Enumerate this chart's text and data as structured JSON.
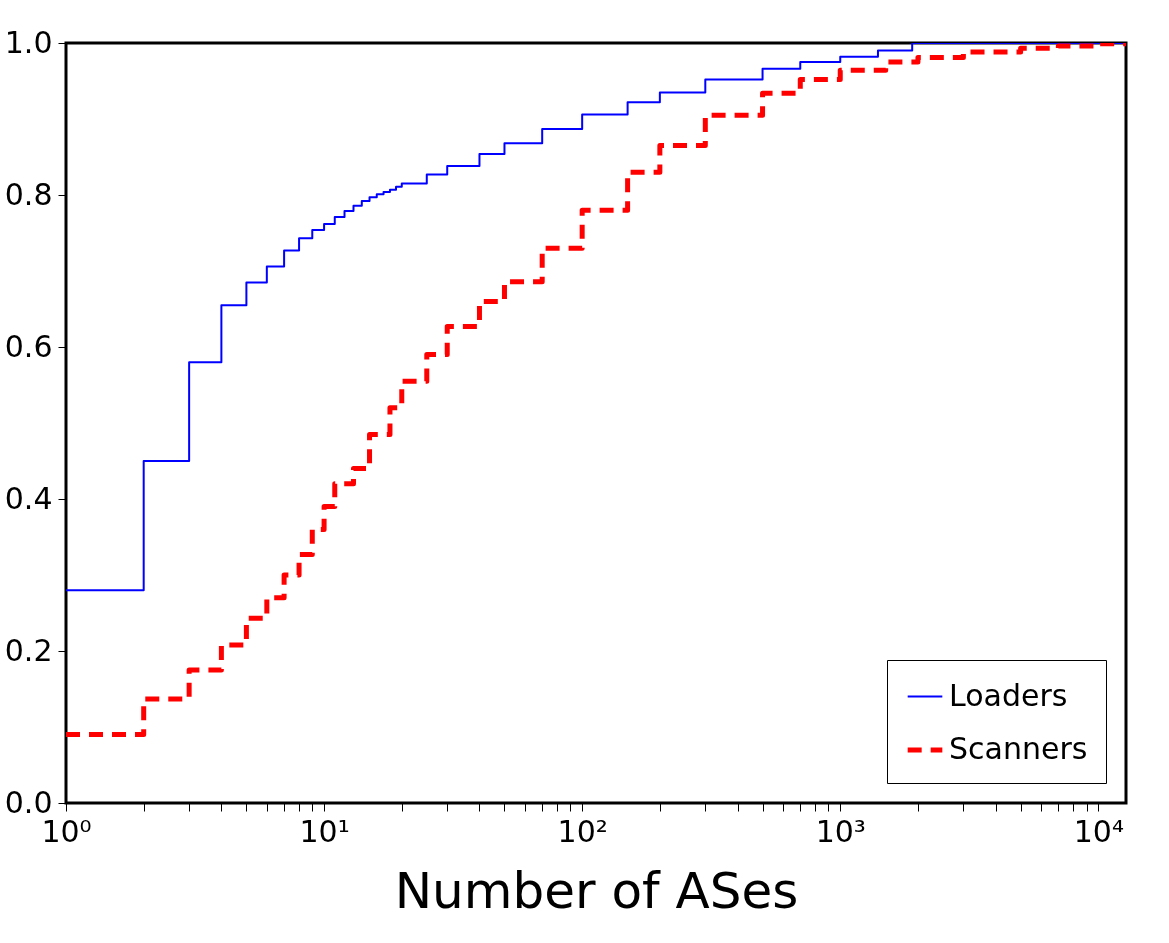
{
  "chart_data": {
    "type": "step",
    "xlabel": "Number of ASes",
    "log": "x",
    "grid": false,
    "legend": "bottom right",
    "xlim": [
      1,
      12800
    ],
    "ylim": [
      0,
      1
    ],
    "xticks": [
      {
        "value": 1,
        "label": "10⁰"
      },
      {
        "value": 2,
        "label": null
      },
      {
        "value": 3,
        "label": null
      },
      {
        "value": 4,
        "label": null
      },
      {
        "value": 5,
        "label": null
      },
      {
        "value": 6,
        "label": null
      },
      {
        "value": 7,
        "label": null
      },
      {
        "value": 8,
        "label": null
      },
      {
        "value": 9,
        "label": null
      },
      {
        "value": 10,
        "label": "10¹"
      },
      {
        "value": 20,
        "label": null
      },
      {
        "value": 30,
        "label": null
      },
      {
        "value": 40,
        "label": null
      },
      {
        "value": 50,
        "label": null
      },
      {
        "value": 60,
        "label": null
      },
      {
        "value": 70,
        "label": null
      },
      {
        "value": 80,
        "label": null
      },
      {
        "value": 90,
        "label": null
      },
      {
        "value": 100,
        "label": "10²"
      },
      {
        "value": 200,
        "label": null
      },
      {
        "value": 300,
        "label": null
      },
      {
        "value": 400,
        "label": null
      },
      {
        "value": 500,
        "label": null
      },
      {
        "value": 600,
        "label": null
      },
      {
        "value": 700,
        "label": null
      },
      {
        "value": 800,
        "label": null
      },
      {
        "value": 900,
        "label": null
      },
      {
        "value": 1000,
        "label": "10³"
      },
      {
        "value": 2000,
        "label": null
      },
      {
        "value": 3000,
        "label": null
      },
      {
        "value": 4000,
        "label": null
      },
      {
        "value": 5000,
        "label": null
      },
      {
        "value": 6000,
        "label": null
      },
      {
        "value": 7000,
        "label": null
      },
      {
        "value": 8000,
        "label": null
      },
      {
        "value": 9000,
        "label": null
      },
      {
        "value": 10000,
        "label": "10⁴"
      }
    ],
    "yticks": [
      {
        "value": 0,
        "label": "0.0"
      },
      {
        "value": 0.2,
        "label": "0.2"
      },
      {
        "value": 0.4,
        "label": "0.4"
      },
      {
        "value": 0.6,
        "label": "0.6"
      },
      {
        "value": 0.8,
        "label": "0.8"
      },
      {
        "value": 1,
        "label": "1.0"
      }
    ],
    "series": [
      {
        "name": "Loaders",
        "color": "#0000ff",
        "line_style": "solid",
        "x": [
          1,
          2,
          3,
          4,
          5,
          6,
          7,
          8,
          9,
          10,
          11,
          12,
          13,
          14,
          15,
          16,
          17,
          18,
          19,
          20,
          25,
          30,
          40,
          50,
          70,
          100,
          150,
          200,
          300,
          500,
          700,
          1000,
          1400,
          1900,
          12800
        ],
        "values": [
          0.28,
          0.45,
          0.58,
          0.655,
          0.685,
          0.706,
          0.727,
          0.743,
          0.754,
          0.762,
          0.771,
          0.779,
          0.786,
          0.792,
          0.797,
          0.801,
          0.804,
          0.807,
          0.811,
          0.815,
          0.827,
          0.838,
          0.854,
          0.868,
          0.887,
          0.906,
          0.922,
          0.935,
          0.952,
          0.966,
          0.975,
          0.982,
          0.99,
          1.0,
          1.0
        ]
      },
      {
        "name": "Scanners",
        "color": "#ff0000",
        "line_style": "dashed",
        "x": [
          1,
          2,
          3,
          4,
          5,
          6,
          7,
          8,
          9,
          10,
          11,
          13,
          15,
          18,
          20,
          25,
          30,
          40,
          50,
          70,
          100,
          150,
          200,
          300,
          500,
          700,
          1000,
          1500,
          2000,
          3000,
          5000,
          7000,
          10000,
          12800
        ],
        "values": [
          0.09,
          0.137,
          0.175,
          0.208,
          0.243,
          0.27,
          0.3,
          0.327,
          0.36,
          0.39,
          0.42,
          0.44,
          0.485,
          0.52,
          0.555,
          0.59,
          0.627,
          0.66,
          0.686,
          0.73,
          0.78,
          0.83,
          0.865,
          0.905,
          0.934,
          0.952,
          0.964,
          0.975,
          0.981,
          0.988,
          0.993,
          0.996,
          0.999,
          1.0
        ]
      }
    ]
  }
}
